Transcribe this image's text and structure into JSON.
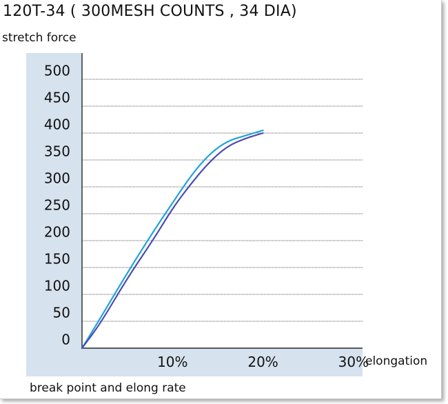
{
  "chart_data": {
    "type": "line",
    "title": "120T-34 ( 300MESH COUNTS , 34 DIA)",
    "ylabel": "stretch force",
    "xlabel": "elongation",
    "caption": "break point and elong rate",
    "ylim": [
      0,
      500
    ],
    "y_ticks": [
      0,
      50,
      100,
      150,
      200,
      250,
      300,
      350,
      400,
      450,
      500
    ],
    "x_ticks": [
      {
        "value": 10,
        "label": "10%"
      },
      {
        "value": 20,
        "label": "20%"
      },
      {
        "value": 30,
        "label": "30%"
      }
    ],
    "xlim": [
      0,
      31
    ],
    "grid": true,
    "series": [
      {
        "color": "#1fa3d8",
        "points": [
          [
            0,
            0
          ],
          [
            2,
            55
          ],
          [
            5,
            140
          ],
          [
            8,
            220
          ],
          [
            10,
            270
          ],
          [
            12,
            320
          ],
          [
            14,
            360
          ],
          [
            16,
            385
          ],
          [
            18,
            395
          ],
          [
            20,
            405
          ]
        ]
      },
      {
        "color": "#4a4ab3",
        "points": [
          [
            0,
            0
          ],
          [
            2,
            45
          ],
          [
            5,
            130
          ],
          [
            8,
            205
          ],
          [
            10,
            260
          ],
          [
            12,
            305
          ],
          [
            14,
            345
          ],
          [
            16,
            375
          ],
          [
            18,
            390
          ],
          [
            20,
            400
          ]
        ]
      }
    ]
  },
  "colors": {
    "axis_band": "#d6e2ee",
    "grid": "#555555",
    "axis": "#000000"
  }
}
